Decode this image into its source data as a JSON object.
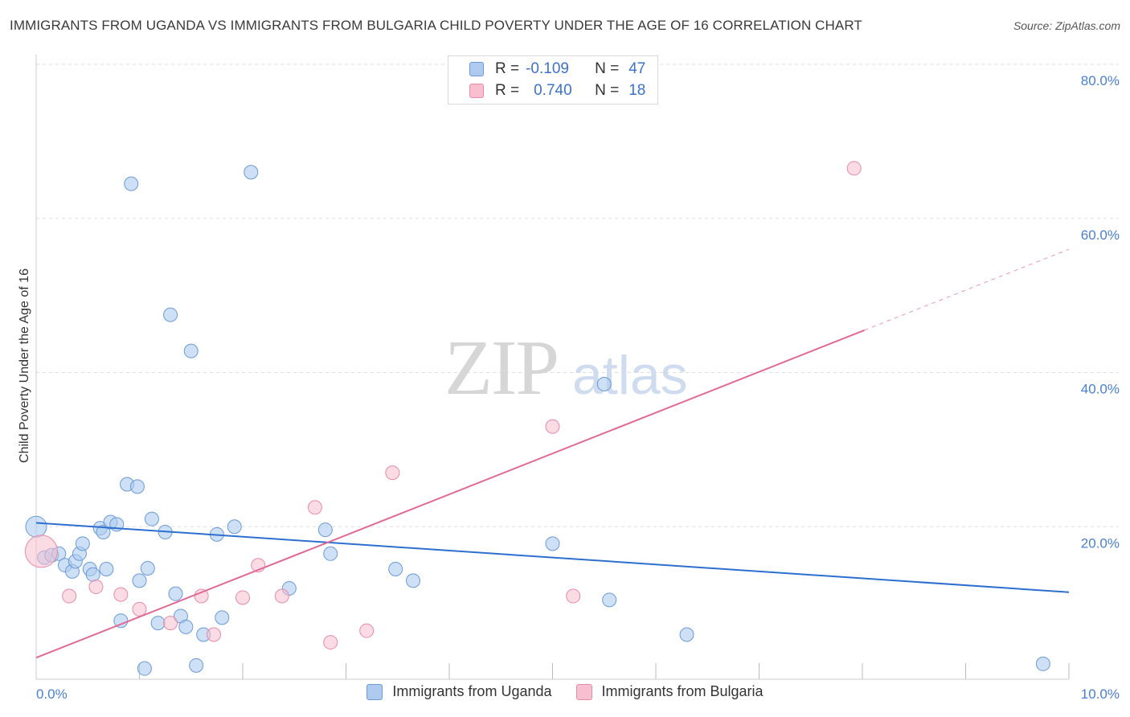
{
  "header": {
    "title": "IMMIGRANTS FROM UGANDA VS IMMIGRANTS FROM BULGARIA CHILD POVERTY UNDER THE AGE OF 16 CORRELATION CHART",
    "source": "Source: ZipAtlas.com"
  },
  "watermark": {
    "zip": "ZIP",
    "atlas": "atlas"
  },
  "legend": {
    "rows": [
      {
        "r_label": "R =",
        "r_value": "-0.109",
        "n_label": "N =",
        "n_value": "47"
      },
      {
        "r_label": "R =",
        "r_value": "0.740",
        "n_label": "N =",
        "n_value": "18"
      }
    ]
  },
  "colors": {
    "uganda_fill": "#aecbef",
    "uganda_stroke": "#6b9ad6",
    "uganda_line": "#2c6fce",
    "bulgaria_fill": "#f7bfd0",
    "bulgaria_stroke": "#e88aa7",
    "bulgaria_line": "#e06a93",
    "tick_text": "#4a7fd0",
    "grid": "#dddddd"
  },
  "chart_data": {
    "type": "scatter",
    "title": "IMMIGRANTS FROM UGANDA VS IMMIGRANTS FROM BULGARIA CHILD POVERTY UNDER THE AGE OF 16 CORRELATION CHART",
    "xlabel": "",
    "ylabel": "Child Poverty Under the Age of 16",
    "xlim": [
      0,
      10
    ],
    "ylim": [
      0,
      80
    ],
    "y_ticks": [
      20,
      40,
      60,
      80
    ],
    "y_tick_labels": [
      "20.0%",
      "40.0%",
      "60.0%",
      "80.0%"
    ],
    "x_tick_labels": [
      "0.0%",
      "10.0%"
    ],
    "x_minor_ticks": [
      1,
      2,
      3,
      4,
      5,
      6,
      7,
      8,
      9,
      10
    ],
    "series": [
      {
        "name": "Immigrants from Uganda",
        "r": -0.109,
        "n": 47,
        "trend": {
          "x0": 0,
          "y0": 20.5,
          "x1": 10,
          "y1": 11.5
        },
        "points": [
          [
            0.0,
            20.0
          ],
          [
            0.08,
            16.0
          ],
          [
            0.15,
            16.3
          ],
          [
            0.22,
            16.5
          ],
          [
            0.28,
            15.0
          ],
          [
            0.35,
            14.2
          ],
          [
            0.38,
            15.5
          ],
          [
            0.42,
            16.5
          ],
          [
            0.45,
            17.8
          ],
          [
            0.52,
            14.5
          ],
          [
            0.55,
            13.8
          ],
          [
            0.62,
            19.8
          ],
          [
            0.65,
            19.3
          ],
          [
            0.68,
            14.5
          ],
          [
            0.72,
            20.6
          ],
          [
            0.78,
            20.3
          ],
          [
            0.82,
            7.8
          ],
          [
            0.88,
            25.5
          ],
          [
            0.92,
            64.5
          ],
          [
            0.98,
            25.2
          ],
          [
            1.0,
            13.0
          ],
          [
            1.05,
            1.6
          ],
          [
            1.08,
            14.6
          ],
          [
            1.12,
            21.0
          ],
          [
            1.18,
            7.5
          ],
          [
            1.25,
            19.3
          ],
          [
            1.3,
            47.5
          ],
          [
            1.35,
            11.3
          ],
          [
            1.4,
            8.4
          ],
          [
            1.45,
            7.0
          ],
          [
            1.5,
            42.8
          ],
          [
            1.55,
            2.0
          ],
          [
            1.62,
            6.0
          ],
          [
            1.75,
            19.0
          ],
          [
            1.8,
            8.2
          ],
          [
            1.92,
            20.0
          ],
          [
            2.08,
            66.0
          ],
          [
            2.45,
            12.0
          ],
          [
            2.8,
            19.6
          ],
          [
            2.85,
            16.5
          ],
          [
            3.48,
            14.5
          ],
          [
            3.65,
            13.0
          ],
          [
            5.0,
            17.8
          ],
          [
            5.5,
            38.5
          ],
          [
            5.55,
            10.5
          ],
          [
            6.3,
            6.0
          ],
          [
            9.75,
            2.2
          ]
        ]
      },
      {
        "name": "Immigrants from Bulgaria",
        "r": 0.74,
        "n": 18,
        "trend": {
          "x0": 0,
          "y0": 3.0,
          "x1": 8.02,
          "y1": 45.5
        },
        "trend_dashed": {
          "x0": 8.02,
          "y0": 45.5,
          "x1": 10,
          "y1": 56.0
        },
        "points": [
          [
            0.05,
            16.8
          ],
          [
            0.32,
            11.0
          ],
          [
            0.58,
            12.2
          ],
          [
            0.82,
            11.2
          ],
          [
            1.0,
            9.3
          ],
          [
            1.3,
            7.5
          ],
          [
            1.6,
            11.0
          ],
          [
            1.72,
            6.0
          ],
          [
            2.0,
            10.8
          ],
          [
            2.15,
            15.0
          ],
          [
            2.38,
            11.0
          ],
          [
            2.7,
            22.5
          ],
          [
            2.85,
            5.0
          ],
          [
            3.2,
            6.5
          ],
          [
            3.45,
            27.0
          ],
          [
            5.0,
            33.0
          ],
          [
            5.2,
            11.0
          ],
          [
            7.92,
            66.5
          ]
        ]
      }
    ],
    "legend_position": "top-center"
  },
  "bottom_legend": {
    "items": [
      {
        "label": "Immigrants from Uganda"
      },
      {
        "label": "Immigrants from Bulgaria"
      }
    ]
  }
}
